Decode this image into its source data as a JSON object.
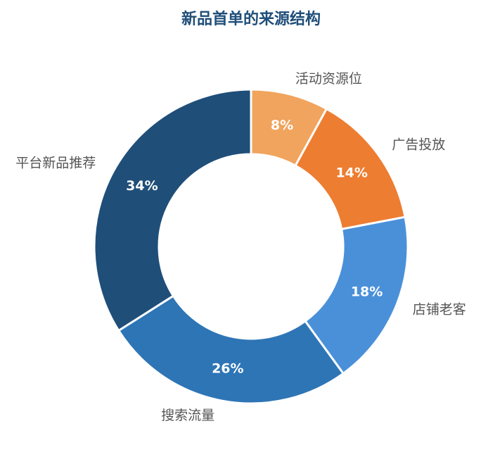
{
  "chart_data": {
    "type": "donut",
    "title": "新品首单的来源结构",
    "categories": [
      "活动资源位",
      "广告投放",
      "店铺老客",
      "搜索流量",
      "平台新品推荐"
    ],
    "values": [
      8,
      14,
      18,
      26,
      34
    ],
    "value_labels": [
      "8%",
      "14%",
      "18%",
      "26%",
      "34%"
    ],
    "colors": [
      "#f0a45d",
      "#ed7d31",
      "#4a90d9",
      "#2e75b6",
      "#1f4e79"
    ]
  }
}
